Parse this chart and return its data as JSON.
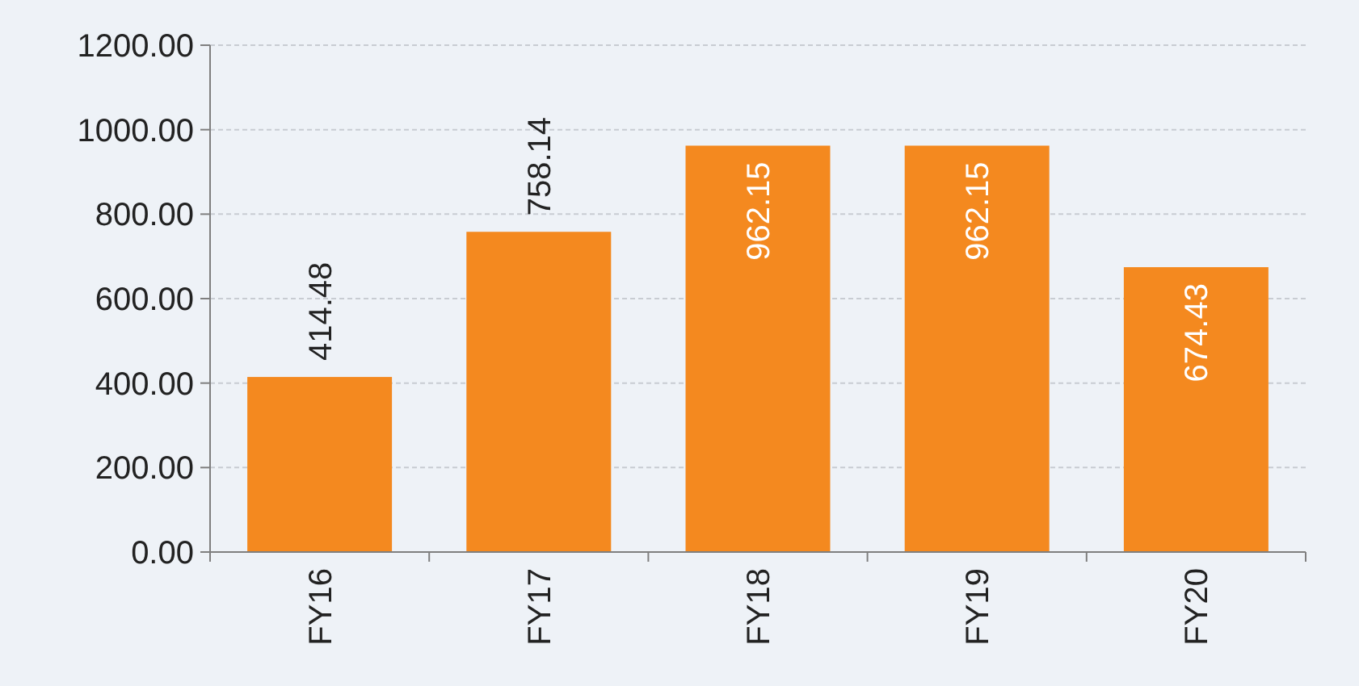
{
  "chart_data": {
    "type": "bar",
    "categories": [
      "FY16",
      "FY17",
      "FY18",
      "FY19",
      "FY20"
    ],
    "values": [
      414.48,
      758.14,
      962.15,
      962.15,
      674.43
    ],
    "color": "#f4891f",
    "ylim": [
      0,
      1200
    ],
    "yticks": [
      {
        "value": 0,
        "label": "0.00"
      },
      {
        "value": 200,
        "label": "200.00"
      },
      {
        "value": 400,
        "label": "400.00"
      },
      {
        "value": 600,
        "label": "600.00"
      },
      {
        "value": 800,
        "label": "800.00"
      },
      {
        "value": 1000,
        "label": "1000.00"
      },
      {
        "value": 1200,
        "label": "1200.00"
      }
    ],
    "grid": "y",
    "data_labels": true
  }
}
